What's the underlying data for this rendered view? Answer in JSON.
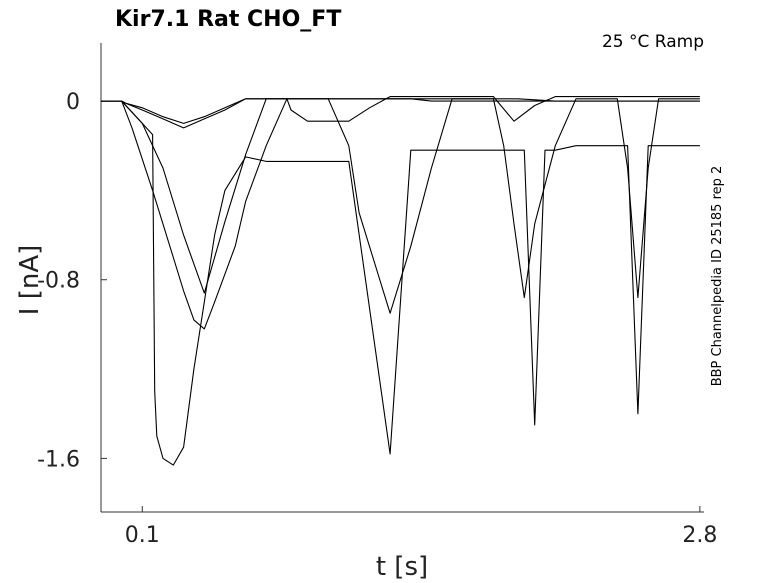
{
  "chart_data": {
    "type": "line",
    "title": "Kir7.1  Rat  CHO_FT",
    "annotation": "25 °C  Ramp",
    "side_label": "BBP Channelpedia ID 25185 rep 2",
    "xlabel": "t [s]",
    "ylabel": "I [nA]",
    "xlim": [
      -0.1,
      2.82
    ],
    "ylim": [
      -1.84,
      0.26
    ],
    "x_ticks": [
      0.1,
      2.8
    ],
    "x_tick_labels": [
      "0.1",
      "2.8"
    ],
    "y_ticks": [
      0,
      -0.8,
      -1.6
    ],
    "y_tick_labels": [
      "0",
      "-0.8",
      "-1.6"
    ],
    "grid": false,
    "series": [
      {
        "x": [
          -0.1,
          0.0,
          0.02,
          0.1,
          0.2,
          0.3,
          0.4,
          0.5,
          0.6,
          0.7,
          0.8,
          0.82,
          0.9,
          1.1,
          1.2,
          1.3,
          1.4,
          1.5,
          1.6,
          1.7,
          1.8,
          1.9,
          2.0,
          2.1,
          2.2,
          2.25,
          2.3,
          2.35,
          2.45,
          2.5,
          2.55,
          2.6,
          2.7,
          2.8
        ],
        "y": [
          0.0,
          0.0,
          -0.01,
          -0.04,
          -0.08,
          -0.12,
          -0.08,
          -0.04,
          0.01,
          0.01,
          0.01,
          -0.04,
          -0.09,
          -0.09,
          -0.03,
          0.02,
          0.02,
          0.02,
          0.02,
          0.02,
          0.02,
          -0.09,
          -0.02,
          0.02,
          0.02,
          0.02,
          0.02,
          0.02,
          0.02,
          0.02,
          0.02,
          0.02,
          0.02,
          0.02
        ]
      },
      {
        "x": [
          -0.1,
          0.0,
          0.02,
          0.1,
          0.2,
          0.3,
          0.4,
          0.5,
          0.6,
          0.7,
          0.8,
          0.82,
          1.1,
          1.2,
          1.3,
          1.4,
          1.5,
          1.6,
          1.7,
          1.8,
          1.9,
          2.0,
          2.1,
          2.2,
          2.25,
          2.3,
          2.35,
          2.45,
          2.5,
          2.55,
          2.6,
          2.7,
          2.8
        ],
        "y": [
          0.0,
          0.0,
          -0.01,
          -0.03,
          -0.07,
          -0.1,
          -0.07,
          -0.03,
          0.01,
          0.01,
          0.01,
          0.01,
          0.01,
          0.01,
          0.01,
          0.01,
          0.0,
          0.0,
          0.0,
          0.0,
          0.0,
          0.0,
          0.0,
          0.0,
          0.0,
          0.0,
          0.0,
          0.0,
          0.0,
          0.0,
          0.0,
          0.0,
          0.0
        ]
      },
      {
        "x": [
          -0.1,
          0.0,
          0.1,
          0.2,
          0.3,
          0.4,
          0.5,
          0.6,
          0.7,
          0.8,
          0.9,
          1.0,
          1.1,
          1.2,
          1.3,
          1.4,
          1.5,
          1.6,
          1.7,
          1.8,
          1.9,
          1.92,
          2.1,
          2.2,
          2.3,
          2.4,
          2.42,
          2.5,
          2.6,
          2.7,
          2.8
        ],
        "y": [
          0.0,
          0.0,
          -0.1,
          -0.3,
          -0.6,
          -0.86,
          -0.54,
          -0.24,
          0.01,
          0.01,
          0.01,
          0.01,
          0.01,
          0.01,
          0.01,
          0.01,
          0.01,
          0.01,
          0.01,
          0.01,
          0.01,
          0.01,
          0.0,
          0.0,
          0.0,
          0.0,
          0.0,
          0.0,
          0.0,
          0.0,
          0.0
        ]
      },
      {
        "x": [
          -0.1,
          0.0,
          0.05,
          0.15,
          0.25,
          0.3,
          0.35,
          0.4,
          0.45,
          0.55,
          0.6,
          0.7,
          0.8,
          0.9,
          1.0,
          1.1,
          1.15,
          1.3,
          1.4,
          1.5,
          1.6,
          1.7,
          1.8,
          1.85,
          1.9,
          1.95,
          2.0,
          2.1,
          2.2,
          2.3,
          2.4,
          2.45,
          2.5,
          2.55,
          2.6,
          2.7,
          2.8
        ],
        "y": [
          0.0,
          0.0,
          -0.12,
          -0.4,
          -0.7,
          -0.85,
          -0.98,
          -1.02,
          -0.9,
          -0.65,
          -0.45,
          -0.2,
          0.01,
          0.01,
          0.01,
          -0.2,
          -0.5,
          -0.95,
          -0.65,
          -0.3,
          0.01,
          0.01,
          0.01,
          -0.2,
          -0.55,
          -0.88,
          -0.55,
          -0.2,
          0.01,
          0.01,
          0.01,
          -0.3,
          -0.88,
          -0.3,
          0.01,
          0.01,
          0.01
        ]
      },
      {
        "x": [
          -0.1,
          0.0,
          0.1,
          0.15,
          0.16,
          0.17,
          0.2,
          0.25,
          0.3,
          0.35,
          0.4,
          0.45,
          0.5,
          0.6,
          0.7,
          0.8,
          0.82,
          0.9,
          1.1,
          1.3,
          1.4,
          1.6,
          1.7,
          1.8,
          1.95,
          2.0,
          2.05,
          2.1,
          2.2,
          2.3,
          2.4,
          2.45,
          2.5,
          2.55,
          2.6,
          2.7,
          2.8
        ],
        "y": [
          0.0,
          0.0,
          -0.1,
          -0.15,
          -1.3,
          -1.5,
          -1.6,
          -1.63,
          -1.55,
          -1.2,
          -0.9,
          -0.6,
          -0.4,
          -0.25,
          -0.27,
          -0.27,
          -0.27,
          -0.27,
          -0.27,
          -1.58,
          -0.22,
          -0.22,
          -0.22,
          -0.22,
          -0.22,
          -1.45,
          -0.22,
          -0.22,
          -0.2,
          -0.2,
          -0.2,
          -0.2,
          -1.4,
          -0.2,
          -0.2,
          -0.2,
          -0.2
        ]
      }
    ]
  }
}
